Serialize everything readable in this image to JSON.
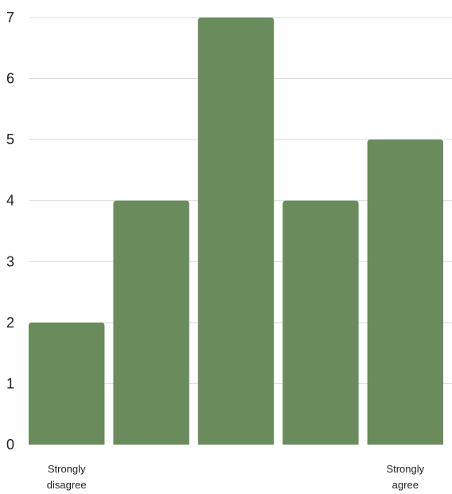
{
  "chart_data": {
    "type": "bar",
    "categories": [
      "Strongly disagree",
      "",
      "",
      "",
      "Strongly agree"
    ],
    "values": [
      2,
      4,
      7,
      4,
      5
    ],
    "title": "",
    "xlabel": "",
    "ylabel": "",
    "ylim": [
      0,
      7
    ],
    "yticks": [
      0,
      1,
      2,
      3,
      4,
      5,
      6,
      7
    ],
    "grid": true,
    "legend": "none",
    "bar_color": "#6a8c5d",
    "grid_color": "#d9d9d9"
  }
}
